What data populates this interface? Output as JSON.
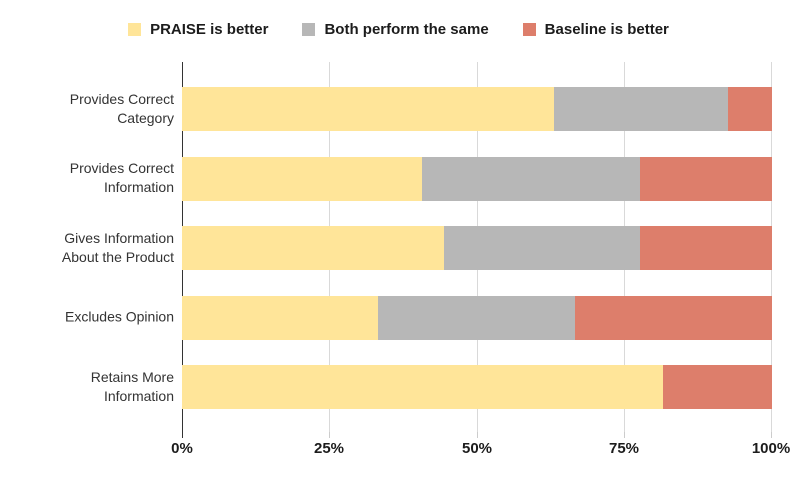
{
  "chart_data": {
    "type": "bar",
    "orientation": "horizontal",
    "stacked": true,
    "unit": "percent",
    "title": "",
    "xlabel": "",
    "ylabel": "",
    "xlim": [
      0,
      100
    ],
    "grid": "vertical",
    "legend_position": "top",
    "x_ticks": [
      "0%",
      "25%",
      "50%",
      "75%",
      "100%"
    ],
    "categories": [
      "Provides Correct\nCategory",
      "Provides Correct\nInformation",
      "Gives Information\nAbout the Product",
      "Excludes Opinion",
      "Retains More\nInformation"
    ],
    "series": [
      {
        "name": "PRAISE is better",
        "color": "#ffe599",
        "values": [
          63.0,
          40.7,
          44.4,
          33.3,
          81.5
        ]
      },
      {
        "name": "Both perform the same",
        "color": "#b7b7b7",
        "values": [
          29.6,
          37.0,
          33.3,
          33.3,
          0
        ]
      },
      {
        "name": "Baseline is better",
        "color": "#dd7e6b",
        "values": [
          7.4,
          22.3,
          22.3,
          33.4,
          18.5
        ]
      }
    ],
    "colors": {
      "gridline": "#d9d9d9",
      "axis_line": "#333333",
      "label_text": "#333333",
      "legend_text": "#1c1c1c"
    }
  }
}
